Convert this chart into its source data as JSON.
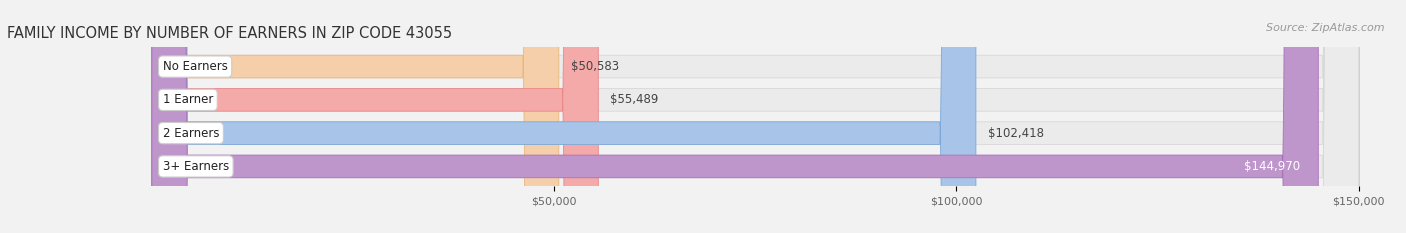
{
  "title": "FAMILY INCOME BY NUMBER OF EARNERS IN ZIP CODE 43055",
  "source": "Source: ZipAtlas.com",
  "categories": [
    "No Earners",
    "1 Earner",
    "2 Earners",
    "3+ Earners"
  ],
  "values": [
    50583,
    55489,
    102418,
    144970
  ],
  "bar_colors": [
    "#f5ceaa",
    "#f5aaaa",
    "#a8c4e8",
    "#bf96cc"
  ],
  "bar_edge_colors": [
    "#e8b87a",
    "#e88888",
    "#7aa8d8",
    "#a870b8"
  ],
  "label_colors": [
    "#333333",
    "#333333",
    "#333333",
    "#ffffff"
  ],
  "value_labels": [
    "$50,583",
    "$55,489",
    "$102,418",
    "$144,970"
  ],
  "x_min": -18000,
  "x_max": 155000,
  "x_ticks": [
    50000,
    100000,
    150000
  ],
  "x_tick_labels": [
    "$50,000",
    "$100,000",
    "$150,000"
  ],
  "background_color": "#f2f2f2",
  "bar_background_color": "#ebebeb",
  "bar_bg_edge_color": "#d8d8d8",
  "title_fontsize": 10.5,
  "source_fontsize": 8,
  "label_fontsize": 8.5,
  "value_fontsize": 8.5,
  "tick_fontsize": 8
}
